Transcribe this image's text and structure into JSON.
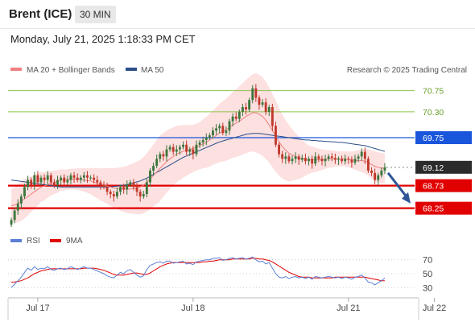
{
  "header": {
    "instrument": "Brent (ICE)",
    "timeframe": "30 MIN",
    "timestamp": "Monday, July 21, 2025 1:18:33 PM CET"
  },
  "main_legend": {
    "ma20_label": "MA 20 + Bollinger Bands",
    "ma20_color": "#f08080",
    "ma50_label": "MA 50",
    "ma50_color": "#2b4f8a",
    "credit": "Research © 2025 Trading Central"
  },
  "colors": {
    "up_candle": "#3c763d",
    "down_candle": "#c0392b",
    "bollinger_fill": "#fde0e0",
    "resistance_line": "#8bc34a",
    "pivot_line": "#1a56db",
    "support_line": "#e00000",
    "last_price_bg": "#2b2b2b",
    "arrow": "#2f5597",
    "rsi_color": "#5b7fd6",
    "rsi_ma_color": "#e00000"
  },
  "chart_data": {
    "type": "candlestick",
    "y_range": [
      67.85,
      71.0
    ],
    "x_labels": [
      {
        "label": "Jul 17",
        "index": 8
      },
      {
        "label": "Jul 18",
        "index": 55
      },
      {
        "label": "Jul 21",
        "index": 102
      },
      {
        "label": "Jul 22",
        "index": 128
      }
    ],
    "levels": [
      {
        "label": "70.75",
        "value": 70.75,
        "kind": "resistance"
      },
      {
        "label": "70.30",
        "value": 70.3,
        "kind": "resistance"
      },
      {
        "label": "69.75",
        "value": 69.75,
        "kind": "pivot"
      },
      {
        "label": "69.12",
        "value": 69.12,
        "kind": "last"
      },
      {
        "label": "68.73",
        "value": 68.73,
        "kind": "support"
      },
      {
        "label": "68.25",
        "value": 68.25,
        "kind": "support"
      }
    ],
    "close": [
      68.0,
      68.2,
      68.35,
      68.5,
      68.7,
      68.85,
      68.75,
      68.95,
      68.8,
      68.9,
      68.85,
      68.95,
      68.8,
      68.75,
      68.85,
      68.9,
      68.8,
      68.85,
      68.95,
      68.9,
      68.85,
      68.9,
      68.95,
      68.9,
      68.9,
      68.85,
      68.8,
      68.75,
      68.7,
      68.6,
      68.55,
      68.5,
      68.6,
      68.7,
      68.65,
      68.75,
      68.8,
      68.7,
      68.6,
      68.5,
      68.55,
      68.8,
      69.05,
      69.15,
      69.3,
      69.4,
      69.35,
      69.5,
      69.55,
      69.45,
      69.5,
      69.55,
      69.6,
      69.45,
      69.5,
      69.4,
      69.6,
      69.65,
      69.7,
      69.75,
      69.8,
      69.9,
      69.95,
      70.0,
      69.85,
      69.9,
      70.1,
      70.2,
      70.15,
      70.3,
      70.4,
      70.35,
      70.55,
      70.8,
      70.6,
      70.45,
      70.5,
      70.3,
      70.4,
      70.0,
      69.6,
      69.4,
      69.3,
      69.35,
      69.25,
      69.3,
      69.35,
      69.28,
      69.32,
      69.25,
      69.3,
      69.2,
      69.35,
      69.3,
      69.25,
      69.3,
      69.35,
      69.32,
      69.28,
      69.3,
      69.25,
      69.3,
      69.28,
      69.22,
      69.3,
      69.35,
      69.45,
      69.3,
      69.05,
      69.0,
      68.85,
      68.95,
      69.05,
      69.12
    ],
    "ma20": [
      68.3,
      68.32,
      68.35,
      68.4,
      68.45,
      68.5,
      68.55,
      68.6,
      68.65,
      68.7,
      68.72,
      68.75,
      68.78,
      68.8,
      68.82,
      68.85,
      68.85,
      68.86,
      68.87,
      68.87,
      68.87,
      68.86,
      68.85,
      68.84,
      68.83,
      68.8,
      68.78,
      68.76,
      68.74,
      68.72,
      68.7,
      68.68,
      68.67,
      68.66,
      68.65,
      68.65,
      68.66,
      68.67,
      68.68,
      68.7,
      68.74,
      68.8,
      68.87,
      68.95,
      69.02,
      69.1,
      69.17,
      69.24,
      69.3,
      69.35,
      69.4,
      69.43,
      69.46,
      69.48,
      69.5,
      69.52,
      69.55,
      69.58,
      69.62,
      69.65,
      69.7,
      69.75,
      69.8,
      69.85,
      69.88,
      69.92,
      69.97,
      70.02,
      70.06,
      70.1,
      70.15,
      70.2,
      70.24,
      70.28,
      70.28,
      70.25,
      70.2,
      70.12,
      70.02,
      69.9,
      69.78,
      69.66,
      69.56,
      69.48,
      69.42,
      69.38,
      69.35,
      69.32,
      69.3,
      69.29,
      69.28,
      69.28,
      69.28,
      69.28,
      69.28,
      69.29,
      69.3,
      69.3,
      69.3,
      69.3,
      69.3,
      69.3,
      69.29,
      69.28,
      69.27,
      69.26,
      69.26,
      69.25,
      69.22,
      69.18,
      69.14,
      69.12,
      69.1,
      69.1
    ],
    "ma50": [
      68.85,
      68.84,
      68.83,
      68.82,
      68.81,
      68.8,
      68.79,
      68.78,
      68.77,
      68.76,
      68.75,
      68.74,
      68.73,
      68.72,
      68.71,
      68.7,
      68.7,
      68.7,
      68.7,
      68.7,
      68.7,
      68.7,
      68.7,
      68.7,
      68.7,
      68.7,
      68.7,
      68.7,
      68.7,
      68.7,
      68.7,
      68.71,
      68.72,
      68.73,
      68.74,
      68.75,
      68.77,
      68.79,
      68.81,
      68.83,
      68.86,
      68.89,
      68.93,
      68.97,
      69.01,
      69.05,
      69.09,
      69.13,
      69.17,
      69.21,
      69.25,
      69.29,
      69.33,
      69.36,
      69.39,
      69.42,
      69.45,
      69.48,
      69.51,
      69.54,
      69.57,
      69.6,
      69.63,
      69.66,
      69.68,
      69.7,
      69.72,
      69.74,
      69.76,
      69.78,
      69.8,
      69.82,
      69.83,
      69.84,
      69.84,
      69.84,
      69.83,
      69.82,
      69.81,
      69.8,
      69.79,
      69.78,
      69.77,
      69.76,
      69.75,
      69.74,
      69.73,
      69.72,
      69.71,
      69.7,
      69.7,
      69.69,
      69.69,
      69.68,
      69.68,
      69.67,
      69.67,
      69.66,
      69.66,
      69.65,
      69.65,
      69.64,
      69.63,
      69.62,
      69.61,
      69.6,
      69.59,
      69.58,
      69.56,
      69.54,
      69.52,
      69.5,
      69.48,
      69.46
    ],
    "bb_width": [
      0.35,
      0.38,
      0.4,
      0.42,
      0.42,
      0.4,
      0.38,
      0.36,
      0.34,
      0.32,
      0.3,
      0.28,
      0.26,
      0.25,
      0.24,
      0.23,
      0.22,
      0.22,
      0.22,
      0.22,
      0.23,
      0.24,
      0.25,
      0.26,
      0.28,
      0.3,
      0.32,
      0.34,
      0.36,
      0.38,
      0.4,
      0.42,
      0.44,
      0.46,
      0.48,
      0.5,
      0.52,
      0.54,
      0.56,
      0.58,
      0.6,
      0.62,
      0.64,
      0.66,
      0.68,
      0.7,
      0.68,
      0.66,
      0.64,
      0.62,
      0.6,
      0.58,
      0.56,
      0.54,
      0.52,
      0.5,
      0.5,
      0.5,
      0.52,
      0.54,
      0.56,
      0.58,
      0.6,
      0.62,
      0.64,
      0.66,
      0.68,
      0.7,
      0.72,
      0.74,
      0.76,
      0.78,
      0.8,
      0.82,
      0.84,
      0.84,
      0.84,
      0.82,
      0.8,
      0.78,
      0.76,
      0.72,
      0.68,
      0.64,
      0.6,
      0.55,
      0.5,
      0.45,
      0.4,
      0.35,
      0.3,
      0.28,
      0.26,
      0.24,
      0.22,
      0.2,
      0.19,
      0.18,
      0.17,
      0.16,
      0.16,
      0.16,
      0.17,
      0.18,
      0.2,
      0.22,
      0.24,
      0.26,
      0.28,
      0.3,
      0.32,
      0.32,
      0.32,
      0.32
    ],
    "rsi_panel": {
      "legend_rsi": "RSI",
      "legend_ma": "9MA",
      "y_range": [
        20,
        80
      ],
      "ticks": [
        "70",
        "50",
        "30"
      ],
      "rsi": [
        30,
        35,
        40,
        45,
        52,
        58,
        55,
        60,
        56,
        58,
        57,
        60,
        56,
        55,
        57,
        58,
        56,
        57,
        60,
        58,
        56,
        58,
        60,
        58,
        58,
        56,
        54,
        52,
        50,
        47,
        45,
        44,
        48,
        52,
        50,
        54,
        56,
        52,
        48,
        45,
        47,
        56,
        62,
        64,
        66,
        67,
        65,
        68,
        68,
        65,
        66,
        67,
        68,
        64,
        65,
        63,
        67,
        68,
        69,
        70,
        70,
        72,
        72,
        73,
        69,
        70,
        72,
        73,
        71,
        72,
        73,
        71,
        72,
        74,
        70,
        67,
        68,
        64,
        66,
        58,
        50,
        45,
        44,
        46,
        43,
        45,
        46,
        44,
        45,
        43,
        45,
        42,
        46,
        45,
        44,
        45,
        46,
        45,
        44,
        45,
        43,
        45,
        44,
        42,
        45,
        46,
        48,
        44,
        38,
        37,
        34,
        37,
        40,
        44
      ],
      "rsi_ma": [
        38,
        38,
        39,
        40,
        42,
        44,
        47,
        50,
        52,
        54,
        55,
        56,
        57,
        57,
        57,
        57,
        57,
        57,
        57,
        57,
        57,
        57,
        58,
        58,
        58,
        58,
        57,
        56,
        55,
        53,
        51,
        49,
        48,
        48,
        48,
        49,
        50,
        51,
        51,
        50,
        49,
        49,
        51,
        54,
        57,
        60,
        62,
        64,
        65,
        66,
        66,
        66,
        66,
        66,
        66,
        66,
        66,
        66,
        67,
        67,
        68,
        68,
        69,
        70,
        70,
        70,
        70,
        71,
        71,
        71,
        71,
        71,
        71,
        72,
        72,
        71,
        71,
        70,
        69,
        67,
        64,
        61,
        58,
        55,
        52,
        50,
        48,
        46,
        45,
        45,
        45,
        44,
        44,
        44,
        44,
        44,
        44,
        44,
        45,
        45,
        45,
        45,
        45,
        45,
        45,
        45,
        45,
        45,
        44,
        43,
        42,
        41,
        40,
        40
      ]
    }
  }
}
